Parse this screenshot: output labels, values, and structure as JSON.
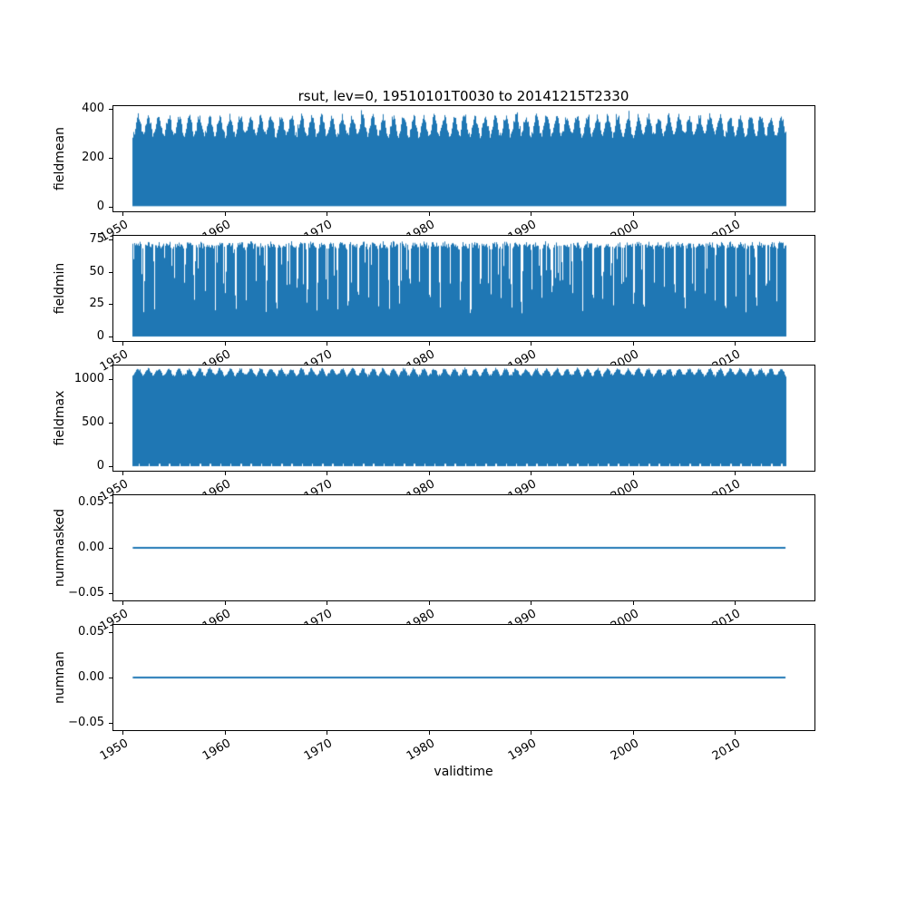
{
  "figure": {
    "title": "rsut, lev=0, 19510101T0030 to 20141215T2330",
    "xlabel": "validtime",
    "background": "#ffffff",
    "series_color": "#1f77b4",
    "axis_color": "#000000"
  },
  "chart_data": [
    {
      "type": "area",
      "ylabel": "fieldmean",
      "ylim": [
        -18,
        410
      ],
      "yticks": [
        0,
        200,
        400
      ],
      "ytick_labels": [
        "0",
        "200",
        "400"
      ],
      "xticks": [
        1950,
        1960,
        1970,
        1980,
        1990,
        2000,
        2010
      ],
      "xtick_labels": [
        "1950",
        "1960",
        "1970",
        "1980",
        "1990",
        "2000",
        "2010"
      ],
      "x_range_years": [
        1949.1,
        2017.8
      ],
      "data_start_year": 1951.0,
      "data_end_year": 2014.96,
      "envelope": {
        "bottom": 3,
        "top_base": 330,
        "top_annual_amp": 38,
        "top_noise": 13,
        "spike_prob": 0.008,
        "spike_add": 30,
        "top_max": 396
      },
      "summary": "30-minute global fieldmean of rsut 1951-2014; dense band from ~0 to an annually oscillating upper envelope between ~275 and ~396"
    },
    {
      "type": "area",
      "ylabel": "fieldmin",
      "ylim": [
        -3.5,
        78
      ],
      "yticks": [
        0,
        25,
        50,
        75
      ],
      "ytick_labels": [
        "0",
        "25",
        "50",
        "75"
      ],
      "xticks": [
        1950,
        1960,
        1970,
        1980,
        1990,
        2000,
        2010
      ],
      "xtick_labels": [
        "1950",
        "1960",
        "1970",
        "1980",
        "1990",
        "2000",
        "2010"
      ],
      "x_range_years": [
        1949.1,
        2017.8
      ],
      "data_start_year": 1951.0,
      "data_end_year": 2014.96,
      "envelope": {
        "bottom": 0,
        "top_base": 70.5,
        "top_annual_amp": 1,
        "top_noise": 2.5,
        "notch_depth_min": 18,
        "notch_depth_max": 45,
        "mid_dip_prob": 0.1,
        "mid_dip_min": 40,
        "mid_dip_max": 65
      },
      "summary": "fieldmin of rsut; band from 0 to ~72 with narrow annual dips of the upper edge down to ~20-45"
    },
    {
      "type": "area",
      "ylabel": "fieldmax",
      "ylim": [
        -50,
        1150
      ],
      "yticks": [
        0,
        500,
        1000
      ],
      "ytick_labels": [
        "0",
        "500",
        "1000"
      ],
      "xticks": [
        1950,
        1960,
        1970,
        1980,
        1990,
        2000,
        2010
      ],
      "xtick_labels": [
        "1950",
        "1960",
        "1970",
        "1980",
        "1990",
        "2000",
        "2010"
      ],
      "x_range_years": [
        1949.1,
        2017.8
      ],
      "data_start_year": 1951.0,
      "data_end_year": 2014.96,
      "envelope": {
        "bottom": 2,
        "top_base": 1075,
        "top_annual_amp": 38,
        "top_noise": 15,
        "top_max": 1135,
        "bottom_dash_value": 30
      },
      "summary": "fieldmax of rsut; band from ~0 to scalloped annual upper envelope around 1030-1130, with short white gaps just above zero"
    },
    {
      "type": "line",
      "ylabel": "nummasked",
      "ylim": [
        -0.058,
        0.058
      ],
      "yticks": [
        -0.05,
        0.0,
        0.05
      ],
      "ytick_labels": [
        "−0.05",
        "0.00",
        "0.05"
      ],
      "xticks": [
        1950,
        1960,
        1970,
        1980,
        1990,
        2000,
        2010
      ],
      "xtick_labels": [
        "1950",
        "1960",
        "1970",
        "1980",
        "1990",
        "2000",
        "2010"
      ],
      "x_range_years": [
        1949.1,
        2017.8
      ],
      "data_start_year": 1951.0,
      "data_end_year": 2014.96,
      "constant_value": 0.0,
      "summary": "nummasked is constant 0 for the whole period"
    },
    {
      "type": "line",
      "ylabel": "numnan",
      "ylim": [
        -0.058,
        0.058
      ],
      "yticks": [
        -0.05,
        0.0,
        0.05
      ],
      "ytick_labels": [
        "−0.05",
        "0.00",
        "0.05"
      ],
      "xticks": [
        1950,
        1960,
        1970,
        1980,
        1990,
        2000,
        2010
      ],
      "xtick_labels": [
        "1950",
        "1960",
        "1970",
        "1980",
        "1990",
        "2000",
        "2010"
      ],
      "x_range_years": [
        1949.1,
        2017.8
      ],
      "data_start_year": 1951.0,
      "data_end_year": 2014.96,
      "constant_value": 0.0,
      "summary": "numnan is constant 0 for the whole period"
    }
  ]
}
